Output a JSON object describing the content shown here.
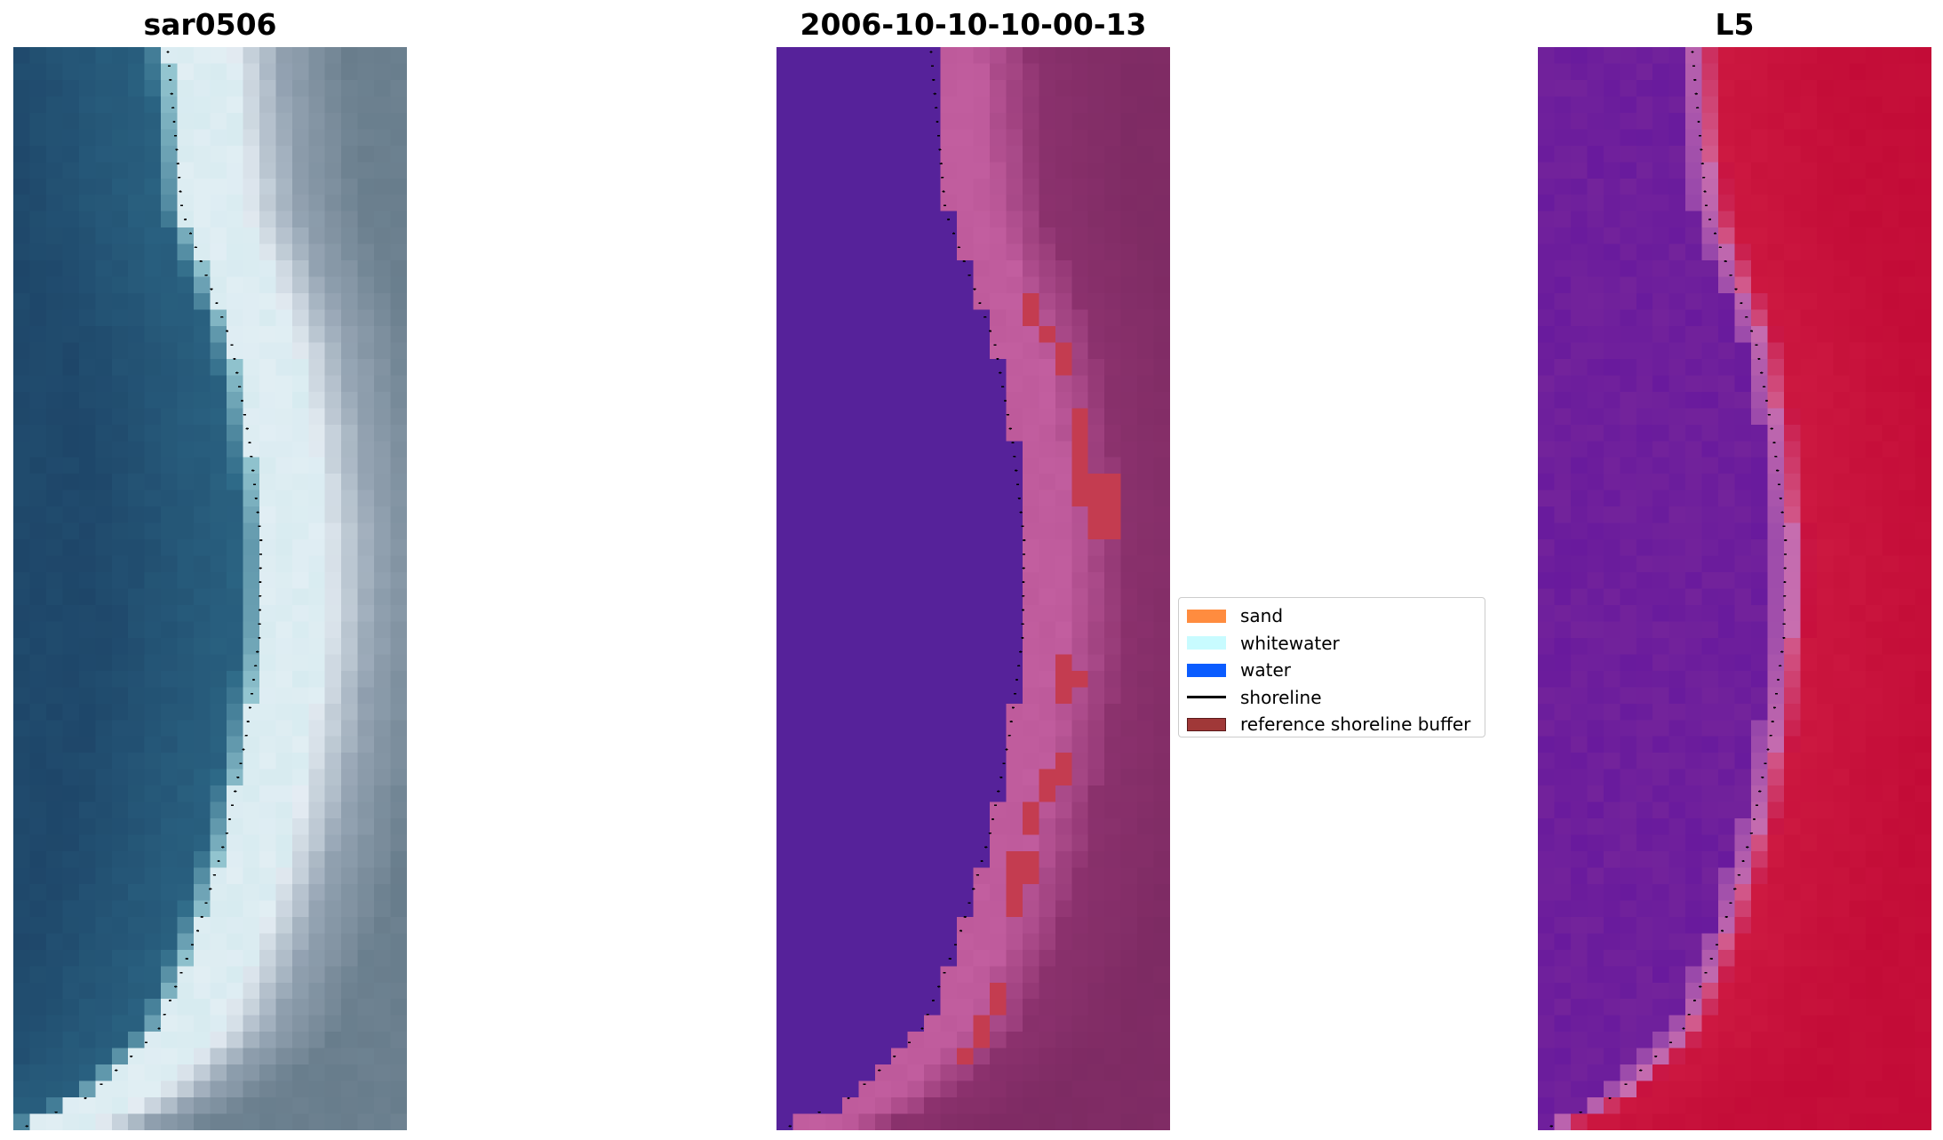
{
  "panels": [
    {
      "title": "sar0506",
      "colormap": "rgb",
      "background": "#1e4a6a"
    },
    {
      "title": "2006-10-10-10-00-13",
      "colormap": "classified",
      "background": "#56229a"
    },
    {
      "title": "L5",
      "colormap": "mndwi",
      "background": "#7a2aa8"
    }
  ],
  "legend": {
    "items": [
      {
        "label": "sand",
        "color": "#ff8c3f",
        "kind": "patch"
      },
      {
        "label": "whitewater",
        "color": "#c8fbff",
        "kind": "patch"
      },
      {
        "label": "water",
        "color": "#0a5cff",
        "kind": "patch"
      },
      {
        "label": "shoreline",
        "color": "#000000",
        "kind": "line"
      },
      {
        "label": "reference shoreline buffer",
        "color": "#a03838",
        "kind": "patch"
      }
    ]
  }
}
